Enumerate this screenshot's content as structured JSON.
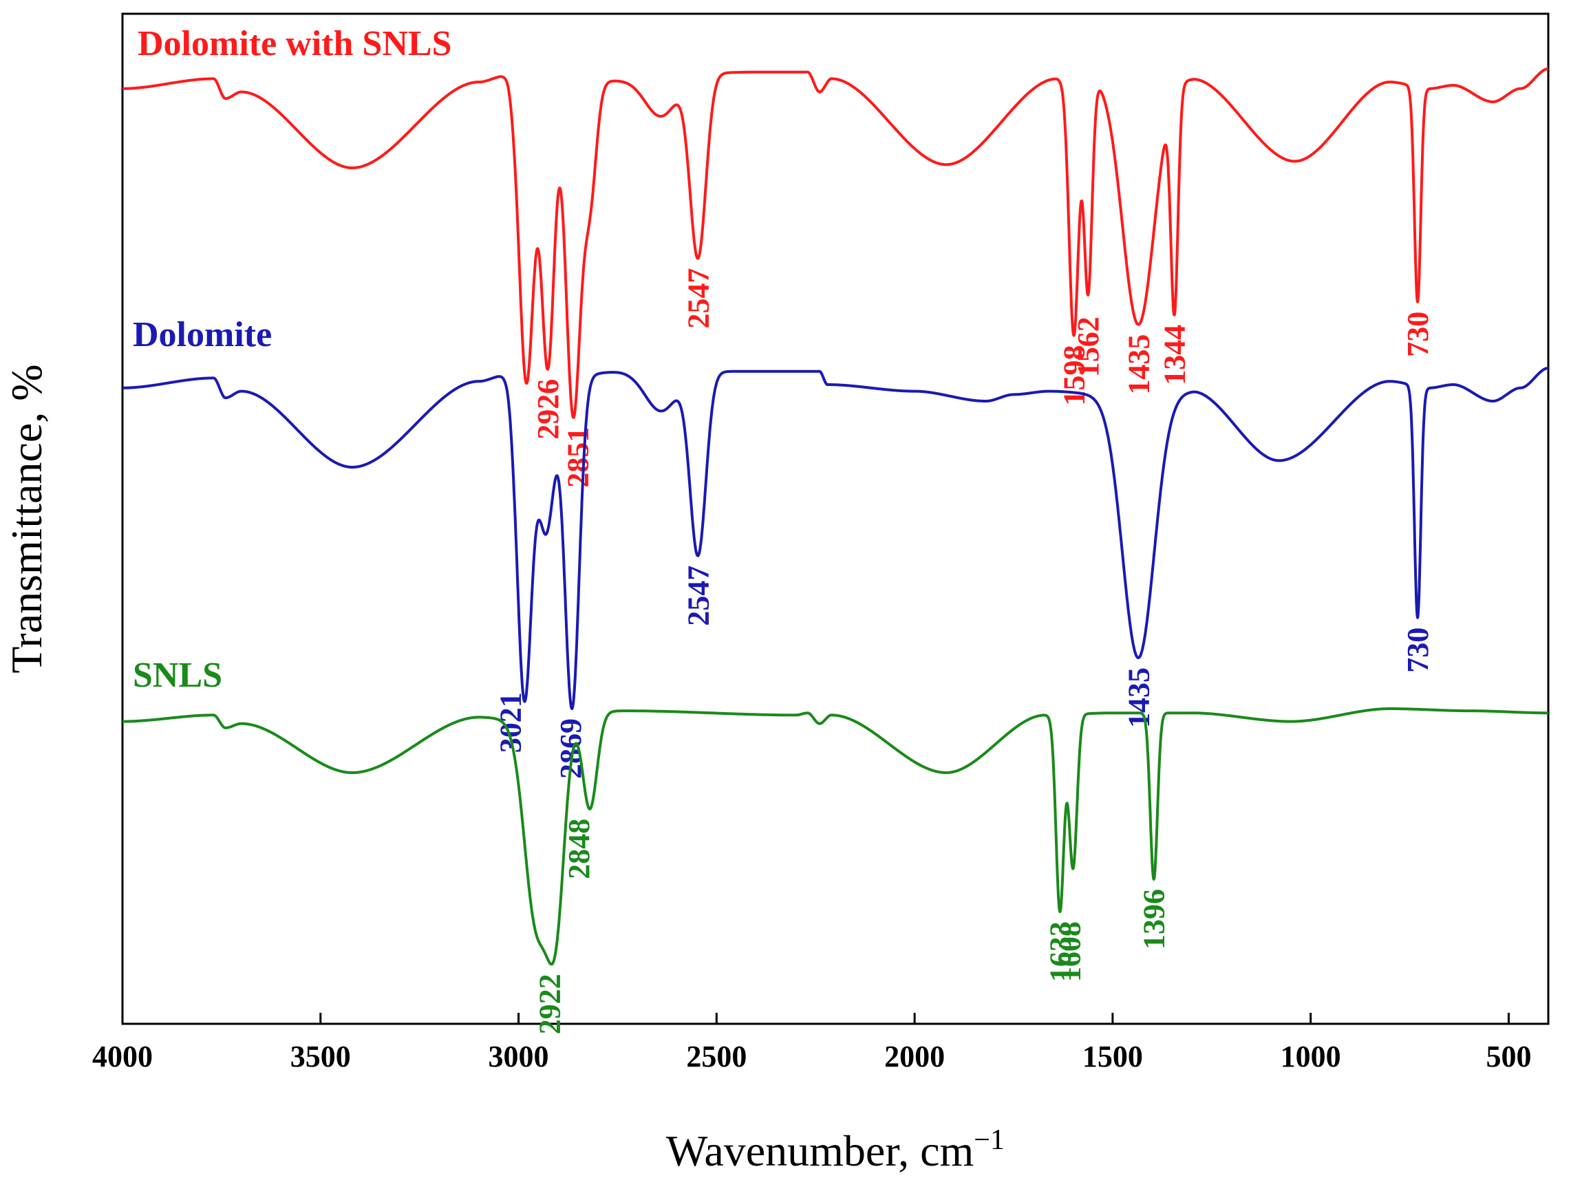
{
  "chart_data": {
    "type": "line",
    "xlabel": "Wavenumber, cm",
    "xlabel_sup": "−1",
    "ylabel": "Transmittance, %",
    "xlim": [
      4000,
      400
    ],
    "x_reversed": true,
    "y_ticks": false,
    "grid": false,
    "x_ticks": [
      {
        "value": 4000,
        "label": "4000"
      },
      {
        "value": 3500,
        "label": "3500"
      },
      {
        "value": 3000,
        "label": "3000"
      },
      {
        "value": 2500,
        "label": "2500"
      },
      {
        "value": 2000,
        "label": "2000"
      },
      {
        "value": 1500,
        "label": "1500"
      },
      {
        "value": 1000,
        "label": "1000"
      },
      {
        "value": 500,
        "label": "500"
      }
    ],
    "series": [
      {
        "name": "Dolomite with SNLS",
        "color": "#ff1a1a",
        "offset": 2,
        "baseline": [
          [
            4000,
            0.94
          ],
          [
            3770,
            0.97
          ],
          [
            3740,
            0.91
          ],
          [
            3700,
            0.93
          ],
          [
            3420,
            0.7
          ],
          [
            3100,
            0.96
          ],
          [
            3030,
            0.98
          ],
          [
            3010,
            0.95
          ],
          [
            2400,
            0.99
          ],
          [
            2270,
            0.99
          ],
          [
            2240,
            0.93
          ],
          [
            2210,
            0.97
          ],
          [
            1920,
            0.71
          ],
          [
            1640,
            0.97
          ],
          [
            1540,
            0.98
          ],
          [
            1300,
            0.97
          ],
          [
            1040,
            0.72
          ],
          [
            800,
            0.96
          ],
          [
            700,
            0.94
          ],
          [
            640,
            0.95
          ],
          [
            540,
            0.9
          ],
          [
            470,
            0.94
          ],
          [
            400,
            1.0
          ]
        ],
        "peaks": [
          {
            "x": 2980,
            "depth": 0.9,
            "width": 18
          },
          {
            "x": 2926,
            "depth": 0.85,
            "width": 16
          },
          {
            "x": 2862,
            "depth": 1.0,
            "width": 18
          },
          {
            "x": 2820,
            "depth": 0.35,
            "width": 16
          },
          {
            "x": 2640,
            "depth": 0.12,
            "width": 40
          },
          {
            "x": 2547,
            "depth": 0.55,
            "width": 20
          },
          {
            "x": 1598,
            "depth": 0.78,
            "width": 12
          },
          {
            "x": 1562,
            "depth": 0.65,
            "width": 10
          },
          {
            "x": 1435,
            "depth": 0.75,
            "width": 40
          },
          {
            "x": 1344,
            "depth": 0.66,
            "width": 9
          },
          {
            "x": 730,
            "depth": 0.65,
            "width": 8
          }
        ],
        "peak_labels": [
          {
            "x": 2926,
            "label": "2926"
          },
          {
            "x": 2851,
            "label": "2851"
          },
          {
            "x": 2547,
            "label": "2547"
          },
          {
            "x": 1598,
            "label": "1598"
          },
          {
            "x": 1562,
            "label": "1562"
          },
          {
            "x": 1435,
            "label": "1435"
          },
          {
            "x": 1344,
            "label": "1344"
          },
          {
            "x": 730,
            "label": "730"
          }
        ]
      },
      {
        "name": "Dolomite",
        "color": "#1a1ab4",
        "offset": 1,
        "baseline": [
          [
            4000,
            0.94
          ],
          [
            3770,
            0.97
          ],
          [
            3740,
            0.91
          ],
          [
            3700,
            0.93
          ],
          [
            3420,
            0.7
          ],
          [
            3100,
            0.96
          ],
          [
            3030,
            0.98
          ],
          [
            3010,
            0.95
          ],
          [
            2730,
            0.99
          ],
          [
            2400,
            0.99
          ],
          [
            2240,
            0.99
          ],
          [
            2220,
            0.95
          ],
          [
            2000,
            0.93
          ],
          [
            1820,
            0.9
          ],
          [
            1750,
            0.92
          ],
          [
            1660,
            0.93
          ],
          [
            1510,
            0.92
          ],
          [
            1300,
            0.93
          ],
          [
            1080,
            0.72
          ],
          [
            800,
            0.96
          ],
          [
            700,
            0.94
          ],
          [
            640,
            0.95
          ],
          [
            540,
            0.9
          ],
          [
            470,
            0.94
          ],
          [
            400,
            1.0
          ]
        ],
        "peaks": [
          {
            "x": 2985,
            "depth": 0.95,
            "width": 18
          },
          {
            "x": 2930,
            "depth": 0.45,
            "width": 20
          },
          {
            "x": 2865,
            "depth": 1.0,
            "width": 18
          },
          {
            "x": 2640,
            "depth": 0.12,
            "width": 40
          },
          {
            "x": 2547,
            "depth": 0.55,
            "width": 20
          },
          {
            "x": 1435,
            "depth": 0.8,
            "width": 40
          },
          {
            "x": 730,
            "depth": 0.7,
            "width": 8
          }
        ],
        "peak_labels": [
          {
            "x": 3021,
            "label": "3021"
          },
          {
            "x": 2869,
            "label": "2869"
          },
          {
            "x": 2547,
            "label": "2547"
          },
          {
            "x": 1435,
            "label": "1435"
          },
          {
            "x": 730,
            "label": "730"
          }
        ]
      },
      {
        "name": "SNLS",
        "color": "#1a8a1a",
        "offset": 0,
        "baseline": [
          [
            4000,
            0.94
          ],
          [
            3770,
            0.97
          ],
          [
            3740,
            0.91
          ],
          [
            3700,
            0.93
          ],
          [
            3420,
            0.7
          ],
          [
            3100,
            0.96
          ],
          [
            3010,
            0.95
          ],
          [
            2730,
            0.99
          ],
          [
            2300,
            0.97
          ],
          [
            2270,
            0.98
          ],
          [
            2240,
            0.93
          ],
          [
            2210,
            0.97
          ],
          [
            1920,
            0.7
          ],
          [
            1670,
            0.97
          ],
          [
            1500,
            0.98
          ],
          [
            1300,
            0.98
          ],
          [
            1050,
            0.94
          ],
          [
            800,
            1.0
          ],
          [
            600,
            0.99
          ],
          [
            400,
            0.98
          ]
        ],
        "peaks": [
          {
            "x": 2955,
            "depth": 0.95,
            "width": 30
          },
          {
            "x": 2905,
            "depth": 0.85,
            "width": 22
          },
          {
            "x": 2820,
            "depth": 0.45,
            "width": 18
          },
          {
            "x": 1633,
            "depth": 0.92,
            "width": 10
          },
          {
            "x": 1600,
            "depth": 0.72,
            "width": 10
          },
          {
            "x": 1396,
            "depth": 0.78,
            "width": 9
          }
        ],
        "peak_labels": [
          {
            "x": 2922,
            "label": "2922"
          },
          {
            "x": 2848,
            "label": "2848"
          },
          {
            "x": 1633,
            "label": "1633"
          },
          {
            "x": 1608,
            "label": "1608"
          },
          {
            "x": 1396,
            "label": "1396"
          }
        ]
      }
    ]
  }
}
